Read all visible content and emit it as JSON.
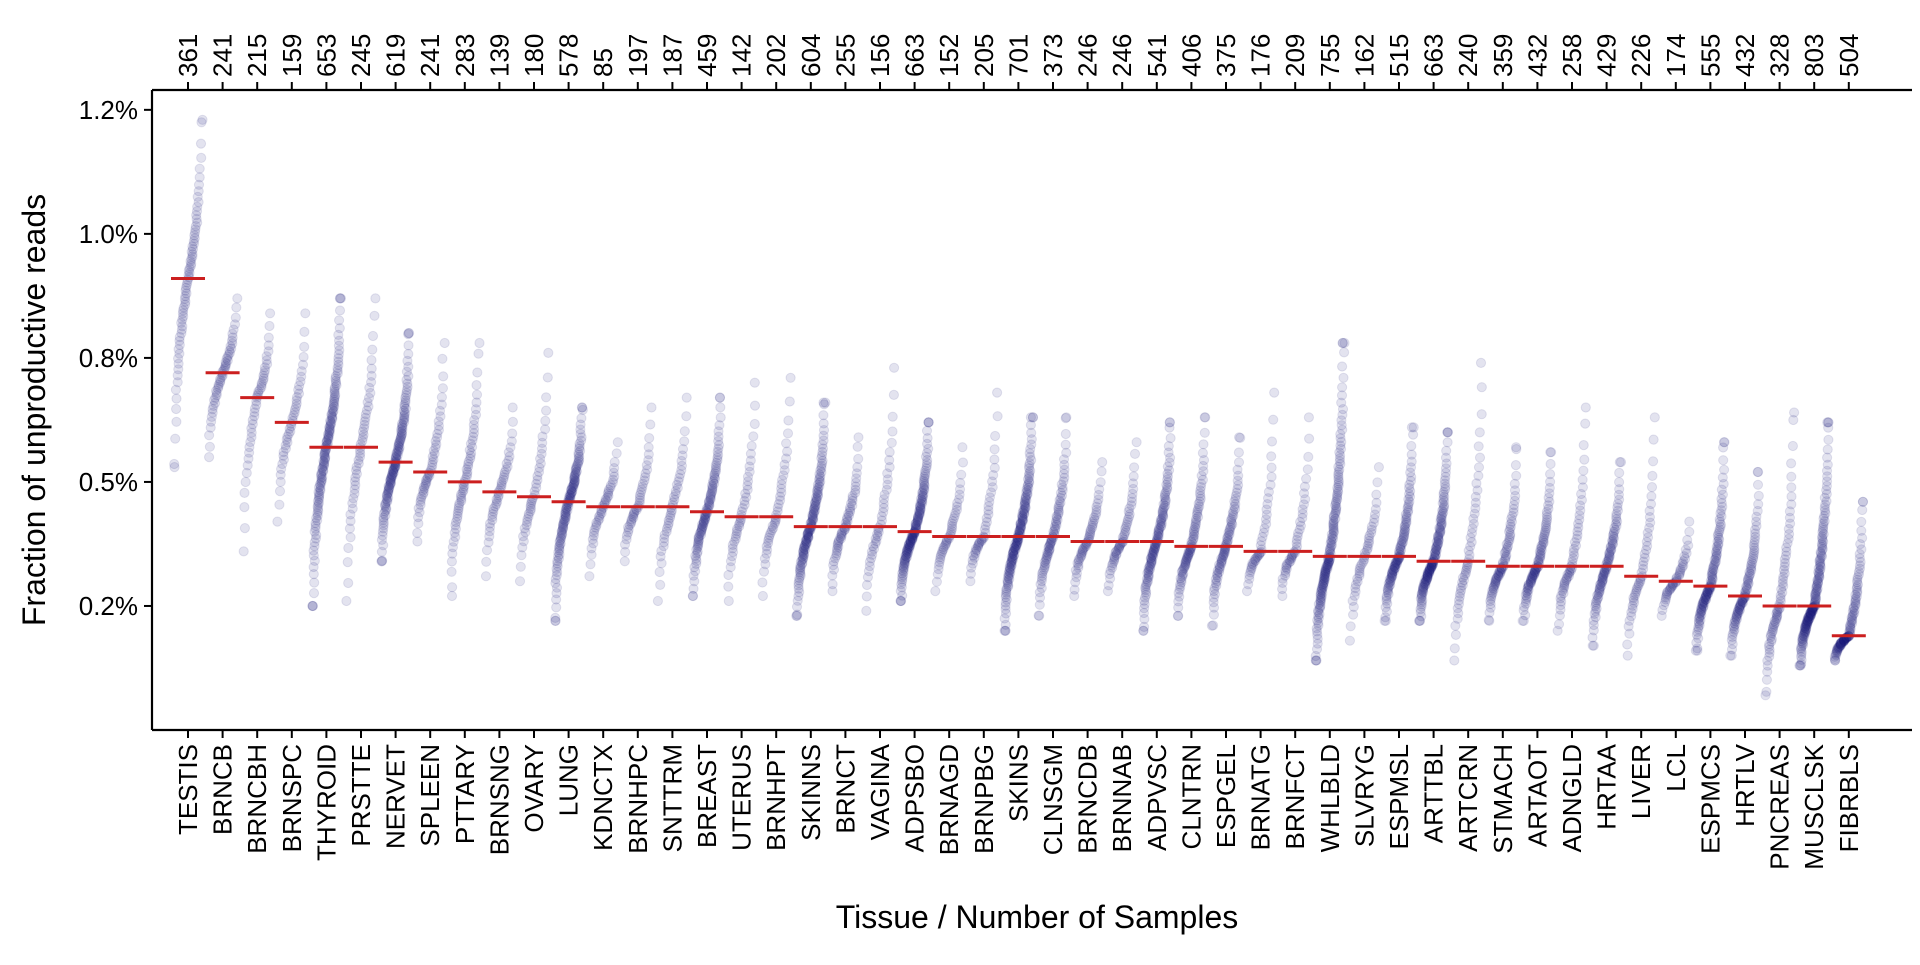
{
  "chart_data": {
    "type": "scatter",
    "subtype": "sorted strip plot with per-tissue median markers",
    "xlabel": "Tissue / Number of Samples",
    "ylabel": "Fraction of unproductive reads",
    "ylim": [
      0.0,
      1.29
    ],
    "yticks": [
      {
        "value": 0.25,
        "label": "0.2%"
      },
      {
        "value": 0.5,
        "label": "0.5%"
      },
      {
        "value": 0.75,
        "label": "0.8%"
      },
      {
        "value": 1.0,
        "label": "1.0%"
      },
      {
        "value": 1.25,
        "label": "1.2%"
      }
    ],
    "grid": false,
    "legend": "none",
    "colors": {
      "points": "#1b1b7a",
      "median": "#cc1f1f",
      "axis": "#000000"
    },
    "point_opacity": 0.12,
    "tissues": [
      {
        "name": "TESTIS",
        "n": "361",
        "median": 0.91,
        "min": 0.53,
        "max": 1.23
      },
      {
        "name": "BRNCB",
        "n": "241",
        "median": 0.72,
        "min": 0.55,
        "max": 0.87
      },
      {
        "name": "BRNCBH",
        "n": "215",
        "median": 0.67,
        "min": 0.36,
        "max": 0.84
      },
      {
        "name": "BRNSPC",
        "n": "159",
        "median": 0.62,
        "min": 0.42,
        "max": 0.84
      },
      {
        "name": "THYROID",
        "n": "653",
        "median": 0.57,
        "min": 0.25,
        "max": 0.87
      },
      {
        "name": "PRSTTE",
        "n": "245",
        "median": 0.57,
        "min": 0.26,
        "max": 0.87
      },
      {
        "name": "NERVET",
        "n": "619",
        "median": 0.54,
        "min": 0.34,
        "max": 0.8
      },
      {
        "name": "SPLEEN",
        "n": "241",
        "median": 0.52,
        "min": 0.38,
        "max": 0.78
      },
      {
        "name": "PTTARY",
        "n": "283",
        "median": 0.5,
        "min": 0.27,
        "max": 0.78
      },
      {
        "name": "BRNSNG",
        "n": "139",
        "median": 0.48,
        "min": 0.31,
        "max": 0.65
      },
      {
        "name": "OVARY",
        "n": "180",
        "median": 0.47,
        "min": 0.3,
        "max": 0.76
      },
      {
        "name": "LUNG",
        "n": "578",
        "median": 0.46,
        "min": 0.22,
        "max": 0.65
      },
      {
        "name": "KDNCTX",
        "n": "85",
        "median": 0.45,
        "min": 0.31,
        "max": 0.58
      },
      {
        "name": "BRNHPC",
        "n": "197",
        "median": 0.45,
        "min": 0.34,
        "max": 0.65
      },
      {
        "name": "SNTTRM",
        "n": "187",
        "median": 0.45,
        "min": 0.26,
        "max": 0.67
      },
      {
        "name": "BREAST",
        "n": "459",
        "median": 0.44,
        "min": 0.27,
        "max": 0.67
      },
      {
        "name": "UTERUS",
        "n": "142",
        "median": 0.43,
        "min": 0.26,
        "max": 0.7
      },
      {
        "name": "BRNHPT",
        "n": "202",
        "median": 0.43,
        "min": 0.27,
        "max": 0.71
      },
      {
        "name": "SKINNS",
        "n": "604",
        "median": 0.41,
        "min": 0.23,
        "max": 0.66
      },
      {
        "name": "BRNCT",
        "n": "255",
        "median": 0.41,
        "min": 0.28,
        "max": 0.59
      },
      {
        "name": "VAGINA",
        "n": "156",
        "median": 0.41,
        "min": 0.24,
        "max": 0.73
      },
      {
        "name": "ADPSBO",
        "n": "663",
        "median": 0.4,
        "min": 0.26,
        "max": 0.62
      },
      {
        "name": "BRNAGD",
        "n": "152",
        "median": 0.39,
        "min": 0.28,
        "max": 0.57
      },
      {
        "name": "BRNPBG",
        "n": "205",
        "median": 0.39,
        "min": 0.3,
        "max": 0.68
      },
      {
        "name": "SKINS",
        "n": "701",
        "median": 0.39,
        "min": 0.2,
        "max": 0.63
      },
      {
        "name": "CLNSGM",
        "n": "373",
        "median": 0.39,
        "min": 0.23,
        "max": 0.63
      },
      {
        "name": "BRNCDB",
        "n": "246",
        "median": 0.38,
        "min": 0.27,
        "max": 0.54
      },
      {
        "name": "BRNNAB",
        "n": "246",
        "median": 0.38,
        "min": 0.28,
        "max": 0.58
      },
      {
        "name": "ADPVSC",
        "n": "541",
        "median": 0.38,
        "min": 0.2,
        "max": 0.62
      },
      {
        "name": "CLNTRN",
        "n": "406",
        "median": 0.37,
        "min": 0.23,
        "max": 0.63
      },
      {
        "name": "ESPGEL",
        "n": "375",
        "median": 0.37,
        "min": 0.21,
        "max": 0.59
      },
      {
        "name": "BRNATG",
        "n": "176",
        "median": 0.36,
        "min": 0.28,
        "max": 0.68
      },
      {
        "name": "BRNFCT",
        "n": "209",
        "median": 0.36,
        "min": 0.27,
        "max": 0.63
      },
      {
        "name": "WHLBLD",
        "n": "755",
        "median": 0.35,
        "min": 0.14,
        "max": 0.78
      },
      {
        "name": "SLVRYG",
        "n": "162",
        "median": 0.35,
        "min": 0.18,
        "max": 0.53
      },
      {
        "name": "ESPMSL",
        "n": "515",
        "median": 0.35,
        "min": 0.22,
        "max": 0.61
      },
      {
        "name": "ARTTBL",
        "n": "663",
        "median": 0.34,
        "min": 0.22,
        "max": 0.6
      },
      {
        "name": "ARTCRN",
        "n": "240",
        "median": 0.34,
        "min": 0.14,
        "max": 0.74
      },
      {
        "name": "STMACH",
        "n": "359",
        "median": 0.33,
        "min": 0.22,
        "max": 0.57
      },
      {
        "name": "ARTAOT",
        "n": "432",
        "median": 0.33,
        "min": 0.22,
        "max": 0.56
      },
      {
        "name": "ADNGLD",
        "n": "258",
        "median": 0.33,
        "min": 0.2,
        "max": 0.65
      },
      {
        "name": "HRTAA",
        "n": "429",
        "median": 0.33,
        "min": 0.17,
        "max": 0.54
      },
      {
        "name": "LIVER",
        "n": "226",
        "median": 0.31,
        "min": 0.15,
        "max": 0.63
      },
      {
        "name": "LCL",
        "n": "174",
        "median": 0.3,
        "min": 0.23,
        "max": 0.42
      },
      {
        "name": "ESPMCS",
        "n": "555",
        "median": 0.29,
        "min": 0.16,
        "max": 0.58
      },
      {
        "name": "HRTLV",
        "n": "432",
        "median": 0.27,
        "min": 0.15,
        "max": 0.52
      },
      {
        "name": "PNCREAS",
        "n": "328",
        "median": 0.25,
        "min": 0.07,
        "max": 0.64
      },
      {
        "name": "MUSCLSK",
        "n": "803",
        "median": 0.25,
        "min": 0.13,
        "max": 0.62
      },
      {
        "name": "FIBRBLS",
        "n": "504",
        "median": 0.19,
        "min": 0.14,
        "max": 0.46
      }
    ]
  }
}
